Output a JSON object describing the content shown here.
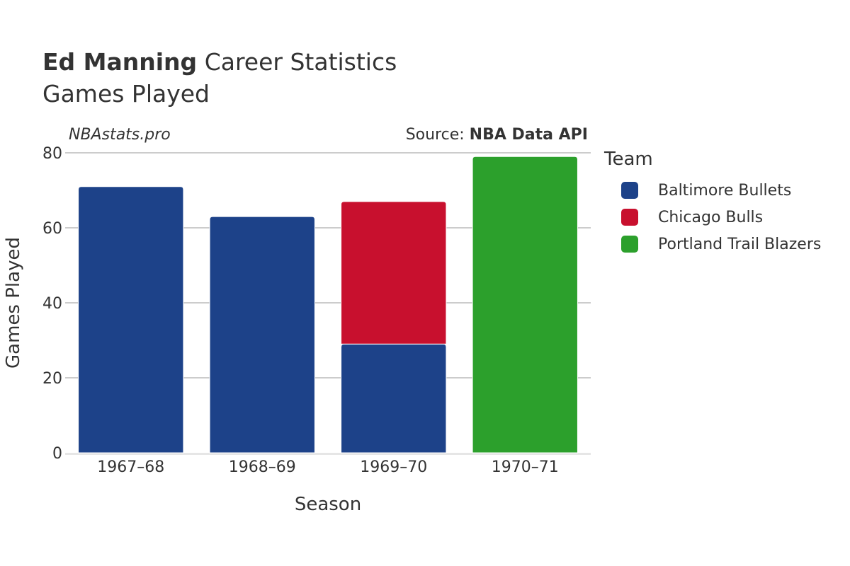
{
  "header": {
    "title_bold": "Ed Manning",
    "title_rest": "Career Statistics",
    "subtitle": "Games Played",
    "watermark": "NBAstats.pro",
    "source_prefix": "Source: ",
    "source_name": "NBA Data API"
  },
  "legend": {
    "title": "Team",
    "items": [
      {
        "label": "Baltimore Bullets",
        "color": "#1d4289"
      },
      {
        "label": "Chicago Bulls",
        "color": "#c8102e"
      },
      {
        "label": "Portland Trail Blazers",
        "color": "#2ca02c"
      }
    ]
  },
  "chart_data": {
    "type": "bar",
    "stacked": true,
    "categories": [
      "1967–68",
      "1968–69",
      "1969–70",
      "1970–71"
    ],
    "series": [
      {
        "name": "Baltimore Bullets",
        "color": "#1d4289",
        "values": [
          71,
          63,
          29,
          0
        ]
      },
      {
        "name": "Chicago Bulls",
        "color": "#c8102e",
        "values": [
          0,
          0,
          38,
          0
        ]
      },
      {
        "name": "Portland Trail Blazers",
        "color": "#2ca02c",
        "values": [
          0,
          0,
          0,
          79
        ]
      }
    ],
    "xlabel": "Season",
    "ylabel": "Games Played",
    "ylim": [
      0,
      80
    ],
    "yticks": [
      "0",
      "20",
      "40",
      "60",
      "80"
    ],
    "grid": true,
    "legend_position": "right"
  }
}
